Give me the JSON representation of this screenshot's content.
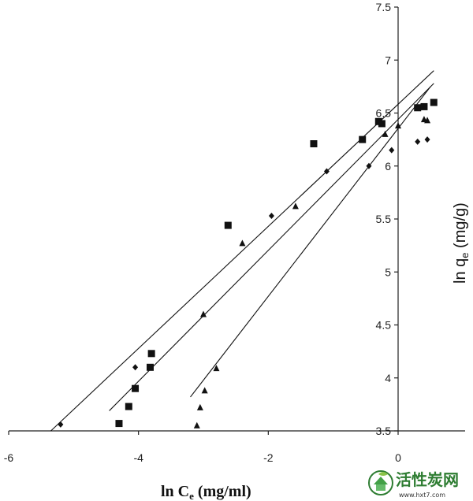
{
  "chart_data": {
    "type": "scatter",
    "title": "",
    "xlabel_main": "ln C",
    "xlabel_sub": "e",
    "xlabel_unit": " (mg/ml)",
    "ylabel_main": "ln q",
    "ylabel_sub": "e",
    "ylabel_unit": " (mg/g)",
    "xlim": [
      -6,
      1
    ],
    "ylim": [
      3.5,
      7.5
    ],
    "x_ticks": [
      -6,
      -4,
      -2,
      0
    ],
    "x_tick_labels": [
      "-6",
      "-4",
      "-2",
      "0"
    ],
    "y_ticks": [
      3.5,
      4,
      4.5,
      5,
      5.5,
      6,
      6.5,
      7,
      7.5
    ],
    "y_tick_labels": [
      "3.5",
      "4",
      "4.5",
      "5",
      "5.5",
      "6",
      "6.5",
      "7",
      "7.5"
    ],
    "y_axis_position": "x=0",
    "grid": false,
    "legend": "none",
    "series": [
      {
        "marker": "square",
        "color": "#111111",
        "points": [
          [
            -4.3,
            3.57
          ],
          [
            -4.15,
            3.73
          ],
          [
            -4.05,
            3.9
          ],
          [
            -3.82,
            4.1
          ],
          [
            -3.8,
            4.23
          ],
          [
            -2.62,
            5.44
          ],
          [
            -1.3,
            6.21
          ],
          [
            -0.55,
            6.25
          ],
          [
            -0.3,
            6.42
          ],
          [
            -0.25,
            6.4
          ],
          [
            0.3,
            6.55
          ],
          [
            0.4,
            6.56
          ],
          [
            0.55,
            6.6
          ]
        ],
        "fit_line": [
          [
            -4.45,
            3.69
          ],
          [
            0.55,
            6.78
          ]
        ]
      },
      {
        "marker": "diamond",
        "color": "#111111",
        "points": [
          [
            -5.2,
            3.56
          ],
          [
            -4.05,
            4.1
          ],
          [
            -1.95,
            5.53
          ],
          [
            -1.1,
            5.95
          ],
          [
            -0.45,
            6.0
          ],
          [
            -0.1,
            6.15
          ],
          [
            0.3,
            6.23
          ],
          [
            0.45,
            6.25
          ]
        ],
        "fit_line": [
          [
            -5.35,
            3.5
          ],
          [
            0.55,
            6.9
          ]
        ]
      },
      {
        "marker": "triangle",
        "color": "#111111",
        "points": [
          [
            -3.1,
            3.55
          ],
          [
            -3.05,
            3.72
          ],
          [
            -2.98,
            3.88
          ],
          [
            -2.8,
            4.09
          ],
          [
            -3.0,
            4.6
          ],
          [
            -2.4,
            5.27
          ],
          [
            -1.58,
            5.62
          ],
          [
            -0.2,
            6.3
          ],
          [
            0.0,
            6.38
          ],
          [
            0.4,
            6.44
          ],
          [
            0.45,
            6.43
          ]
        ],
        "fit_line": [
          [
            -3.2,
            3.82
          ],
          [
            0.5,
            6.75
          ]
        ]
      }
    ]
  },
  "watermark": {
    "site_name": "活性炭网",
    "url": "www.hxt7.com"
  }
}
